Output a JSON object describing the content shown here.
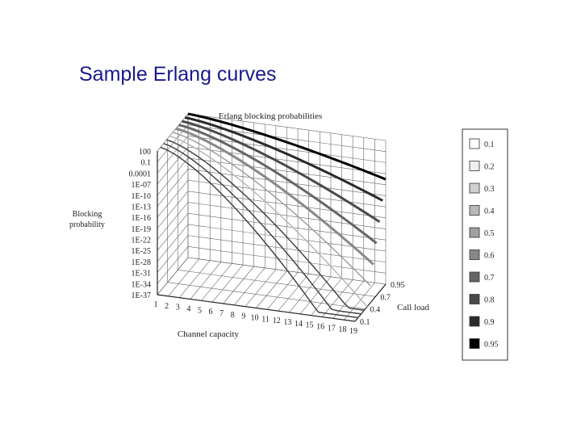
{
  "slide": {
    "title": "Sample Erlang curves"
  },
  "figure": {
    "title": "Erlang blocking probabilities",
    "z_axis_label": [
      "Blocking",
      "probability"
    ],
    "z_ticks": [
      "100",
      "0.1",
      "0.0001",
      "1E-07",
      "1E-10",
      "1E-13",
      "1E-16",
      "1E-19",
      "1E-22",
      "1E-25",
      "1E-28",
      "1E-31",
      "1E-34",
      "1E-37"
    ],
    "x_axis_label": "Channel capacity",
    "x_ticks": [
      "1",
      "2",
      "3",
      "4",
      "5",
      "6",
      "7",
      "8",
      "9",
      "10",
      "11",
      "12",
      "13",
      "14",
      "15",
      "16",
      "17",
      "18",
      "19"
    ],
    "y_axis_label": "Call load",
    "y_ticks": [
      "0.95",
      "0.7",
      "0.4",
      "0.1"
    ],
    "legend": [
      {
        "label": "0.1",
        "color": "#ffffff"
      },
      {
        "label": "0.2",
        "color": "#eeeeee"
      },
      {
        "label": "0.3",
        "color": "#d0d0d0"
      },
      {
        "label": "0.4",
        "color": "#b8b8b8"
      },
      {
        "label": "0.5",
        "color": "#a0a0a0"
      },
      {
        "label": "0.6",
        "color": "#888888"
      },
      {
        "label": "0.7",
        "color": "#666666"
      },
      {
        "label": "0.8",
        "color": "#4a4a4a"
      },
      {
        "label": "0.9",
        "color": "#2a2a2a"
      },
      {
        "label": "0.95",
        "color": "#000000"
      }
    ]
  }
}
